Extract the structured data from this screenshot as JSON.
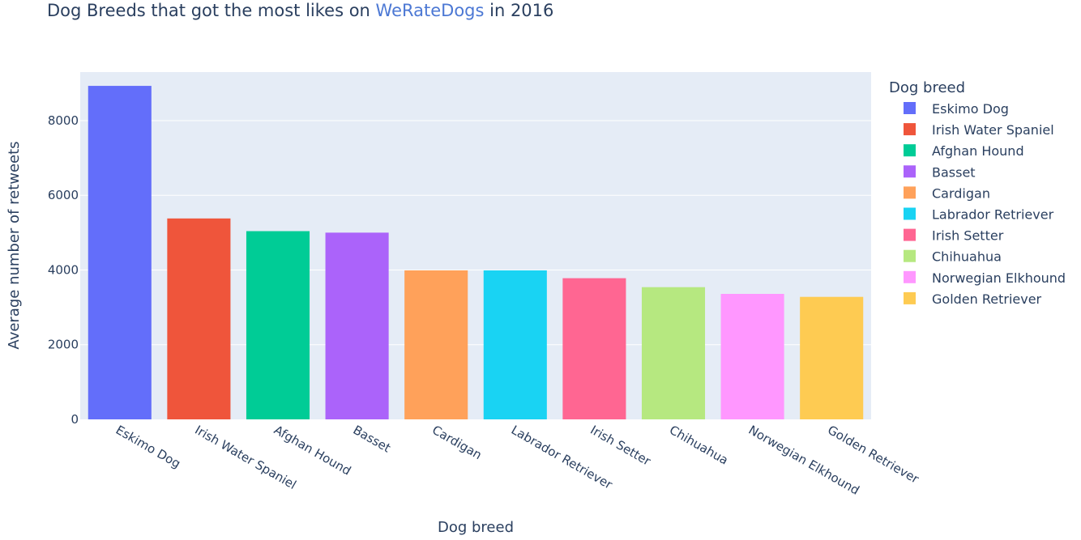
{
  "chart_data": {
    "type": "bar",
    "title_prefix": "Dog Breeds that got the most likes on ",
    "title_link": "WeRateDogs",
    "title_suffix": " in 2016",
    "xlabel": "Dog breed",
    "ylabel": "Average number of retweets",
    "ylim": [
      0,
      9300
    ],
    "yticks": [
      0,
      2000,
      4000,
      6000,
      8000
    ],
    "ytick_labels": [
      "0",
      "2000",
      "4000",
      "6000",
      "8000"
    ],
    "categories": [
      "Eskimo Dog",
      "Irish Water Spaniel",
      "Afghan Hound",
      "Basset",
      "Cardigan",
      "Labrador Retriever",
      "Irish Setter",
      "Chihuahua",
      "Norwegian Elkhound",
      "Golden Retriever"
    ],
    "values": [
      8930,
      5380,
      5040,
      5000,
      3990,
      3990,
      3780,
      3540,
      3360,
      3280
    ],
    "colors": [
      "#636efa",
      "#ef553b",
      "#00cc96",
      "#ab63fa",
      "#ffa15a",
      "#19d3f3",
      "#ff6692",
      "#b6e880",
      "#ff97ff",
      "#fecb52"
    ],
    "grid": true,
    "legend": {
      "title": "Dog breed",
      "placement": "right"
    }
  }
}
